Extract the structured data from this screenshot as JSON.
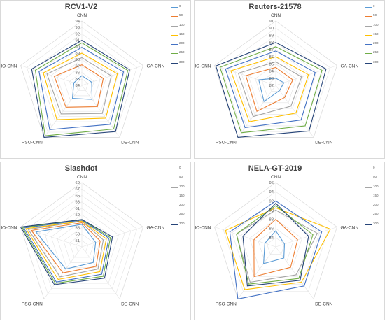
{
  "series_colors": [
    "#5b9bd5",
    "#ed7d31",
    "#a5a5a5",
    "#ffc000",
    "#4472c4",
    "#70ad47",
    "#264478"
  ],
  "chart_data": [
    {
      "type": "radar",
      "title": "RCV1-V2",
      "axes": [
        "CNN",
        "GA-CNN",
        "DE-CNN",
        "PSO-CNN",
        "SHO-CNN"
      ],
      "ticks": [
        "84",
        "85",
        "86",
        "87",
        "88",
        "89",
        "90",
        "91",
        "92",
        "93",
        "94"
      ],
      "rmin": 84,
      "rmax": 94,
      "series": [
        {
          "name": "0",
          "values": [
            85.5,
            85.6,
            86.7,
            86.5,
            85.3
          ]
        },
        {
          "name": "50",
          "values": [
            87.2,
            87.5,
            88.1,
            88.2,
            88.5
          ]
        },
        {
          "name": "100",
          "values": [
            88.3,
            88.8,
            89.4,
            89.5,
            89.7
          ]
        },
        {
          "name": "150",
          "values": [
            89.0,
            89.8,
            90.3,
            90.6,
            90.3
          ]
        },
        {
          "name": "200",
          "values": [
            89.9,
            90.8,
            91.5,
            92.5,
            91.0
          ]
        },
        {
          "name": "250",
          "values": [
            90.6,
            91.5,
            92.4,
            93.7,
            91.6
          ]
        },
        {
          "name": "300",
          "values": [
            91.0,
            91.8,
            92.9,
            94.0,
            92.2
          ]
        }
      ]
    },
    {
      "type": "radar",
      "title": "Reuters-21578",
      "axes": [
        "CNN",
        "GA-CNN",
        "DE-CNN",
        "PSO-CNN",
        "SHO-CNN"
      ],
      "ticks": [
        "82",
        "83",
        "84",
        "85",
        "86",
        "87",
        "88",
        "89",
        "90",
        "91"
      ],
      "rmin": 82,
      "rmax": 91,
      "series": [
        {
          "name": "0",
          "values": [
            83.0,
            83.2,
            82.9,
            84.8,
            84.5
          ]
        },
        {
          "name": "50",
          "values": [
            84.5,
            84.5,
            84.1,
            86.5,
            86.4
          ]
        },
        {
          "name": "100",
          "values": [
            85.3,
            85.8,
            85.6,
            87.4,
            87.5
          ]
        },
        {
          "name": "150",
          "values": [
            86.0,
            86.8,
            86.8,
            88.3,
            88.6
          ]
        },
        {
          "name": "200",
          "values": [
            86.8,
            87.8,
            88.0,
            89.3,
            89.4
          ]
        },
        {
          "name": "250",
          "values": [
            87.4,
            88.8,
            89.0,
            90.2,
            90.2
          ]
        },
        {
          "name": "300",
          "values": [
            88.0,
            89.4,
            89.9,
            91.0,
            90.8
          ]
        }
      ]
    },
    {
      "type": "radar",
      "title": "Slashdot",
      "axes": [
        "CNN",
        "GA-CNN",
        "DE-CNN",
        "PSO-CNN",
        "SHO-CNN"
      ],
      "ticks": [
        "51",
        "53",
        "55",
        "57",
        "59",
        "61",
        "63",
        "65",
        "67",
        "69"
      ],
      "rmin": 49,
      "rmax": 69,
      "series": [
        {
          "name": "0",
          "values": [
            56.0,
            53.5,
            55.0,
            57.5,
            64.0
          ]
        },
        {
          "name": "50",
          "values": [
            56.5,
            55.0,
            56.5,
            59.0,
            65.5
          ]
        },
        {
          "name": "100",
          "values": [
            57.0,
            56.0,
            57.5,
            60.5,
            66.5
          ]
        },
        {
          "name": "150",
          "values": [
            57.0,
            57.0,
            58.5,
            61.5,
            67.3
          ]
        },
        {
          "name": "200",
          "values": [
            57.3,
            57.8,
            59.5,
            62.5,
            68.0
          ]
        },
        {
          "name": "250",
          "values": [
            57.5,
            58.3,
            60.3,
            63.0,
            68.5
          ]
        },
        {
          "name": "300",
          "values": [
            57.5,
            59.0,
            61.0,
            63.5,
            69.0
          ]
        }
      ]
    },
    {
      "type": "radar",
      "title": "NELA-GT-2019",
      "axes": [
        "CNN",
        "GA-CNN",
        "DE-CNN",
        "PSO-CNN",
        "SHO-CNN"
      ],
      "ticks": [
        "84",
        "86",
        "88",
        "90",
        "92",
        "94",
        "96"
      ],
      "rmin": 82,
      "rmax": 96,
      "series": [
        {
          "name": "0",
          "values": [
            85.5,
            84.0,
            85.0,
            86.5,
            84.5
          ]
        },
        {
          "name": "50",
          "values": [
            88.0,
            87.0,
            87.5,
            90.0,
            87.0
          ]
        },
        {
          "name": "100",
          "values": [
            90.0,
            91.5,
            89.5,
            91.5,
            91.0
          ]
        },
        {
          "name": "150",
          "values": [
            90.5,
            94.5,
            91.5,
            93.5,
            93.5
          ]
        },
        {
          "name": "200",
          "values": [
            92.0,
            92.5,
            92.5,
            96.0,
            92.5
          ]
        },
        {
          "name": "250",
          "values": [
            91.0,
            90.5,
            90.5,
            92.0,
            91.0
          ]
        },
        {
          "name": "300",
          "values": [
            91.5,
            89.5,
            91.0,
            92.5,
            89.5
          ]
        }
      ]
    }
  ]
}
